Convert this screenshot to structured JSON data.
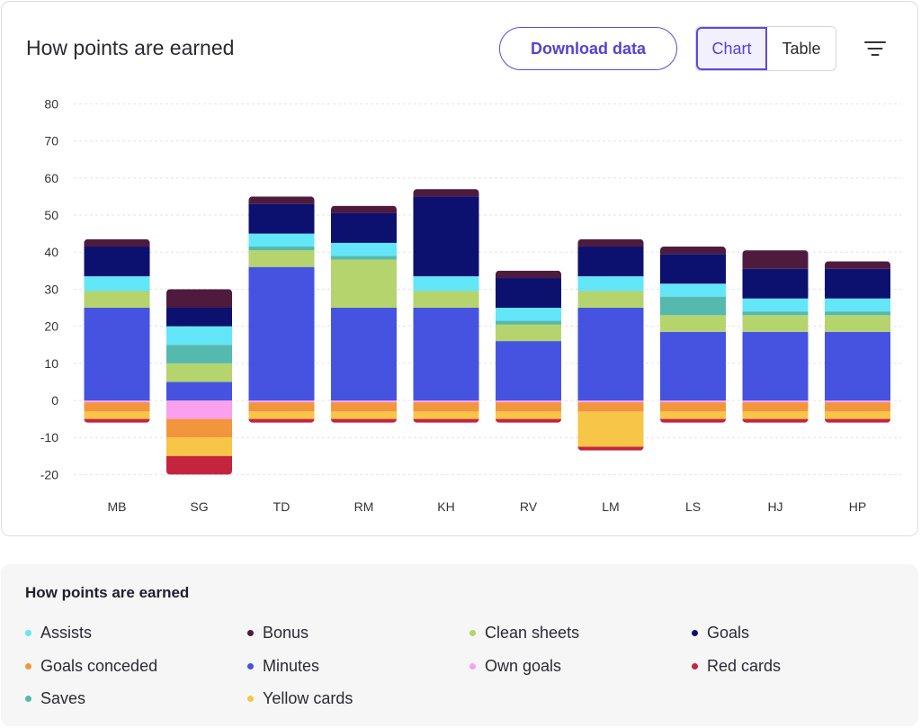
{
  "header": {
    "title": "How points are earned",
    "download_label": "Download data",
    "view_toggle": {
      "chart_label": "Chart",
      "table_label": "Table",
      "selected": "Chart"
    },
    "filter_icon": "filter-icon"
  },
  "legend": {
    "title": "How points are earned",
    "items": [
      {
        "label": "Assists",
        "color": "#63e6f7"
      },
      {
        "label": "Bonus",
        "color": "#4e1b3f"
      },
      {
        "label": "Clean sheets",
        "color": "#b5d46e"
      },
      {
        "label": "Goals",
        "color": "#0c1170"
      },
      {
        "label": "Goals conceded",
        "color": "#f2963e"
      },
      {
        "label": "Minutes",
        "color": "#4553e0"
      },
      {
        "label": "Own goals",
        "color": "#f9a0ef"
      },
      {
        "label": "Red cards",
        "color": "#c5243f"
      },
      {
        "label": "Saves",
        "color": "#55b9ad"
      },
      {
        "label": "Yellow cards",
        "color": "#f7c547"
      }
    ]
  },
  "chart_data": {
    "type": "bar",
    "stacked": true,
    "title": "How points are earned",
    "categories": [
      "MB",
      "SG",
      "TD",
      "RM",
      "KH",
      "RV",
      "LM",
      "LS",
      "HJ",
      "HP"
    ],
    "ylim": [
      -20,
      80
    ],
    "yticks": [
      80,
      70,
      60,
      50,
      40,
      30,
      20,
      10,
      0,
      -10,
      -20
    ],
    "grid": true,
    "series": [
      {
        "name": "Minutes",
        "color": "#4553e0",
        "values": [
          25,
          5,
          36,
          25,
          25,
          16,
          25,
          18.5,
          18.5,
          18.5
        ]
      },
      {
        "name": "Clean sheets",
        "color": "#b5d46e",
        "values": [
          4.5,
          5,
          4.5,
          13,
          4.5,
          4.5,
          4.5,
          4.5,
          4.5,
          4.5
        ]
      },
      {
        "name": "Saves",
        "color": "#55b9ad",
        "values": [
          0,
          5,
          1,
          1,
          0,
          1,
          0,
          5,
          1,
          1
        ]
      },
      {
        "name": "Assists",
        "color": "#63e6f7",
        "values": [
          4,
          5,
          3.5,
          3.5,
          4,
          3.5,
          4,
          3.5,
          3.5,
          3.5
        ]
      },
      {
        "name": "Goals",
        "color": "#0c1170",
        "values": [
          8,
          5,
          8,
          8,
          21.5,
          8,
          8,
          8,
          8,
          8
        ]
      },
      {
        "name": "Bonus",
        "color": "#4e1b3f",
        "values": [
          2,
          5,
          2,
          2,
          2,
          2,
          2,
          2,
          5,
          2
        ]
      },
      {
        "name": "Own goals",
        "color": "#f9a0ef",
        "values": [
          -0.5,
          -5,
          -0.5,
          -0.5,
          -0.5,
          -0.5,
          -0.5,
          -0.5,
          -0.5,
          -0.5
        ]
      },
      {
        "name": "Goals conceded",
        "color": "#f2963e",
        "values": [
          -2.5,
          -5,
          -2.5,
          -2.5,
          -2.5,
          -2.5,
          -2.5,
          -2.5,
          -2.5,
          -2.5
        ]
      },
      {
        "name": "Yellow cards",
        "color": "#f7c547",
        "values": [
          -2,
          -5,
          -2,
          -2,
          -2,
          -2,
          -9.5,
          -2,
          -2,
          -2
        ]
      },
      {
        "name": "Red cards",
        "color": "#c5243f",
        "values": [
          -1,
          -5,
          -1,
          -1,
          -1,
          -1,
          -1,
          -1,
          -1,
          -1
        ]
      }
    ]
  }
}
